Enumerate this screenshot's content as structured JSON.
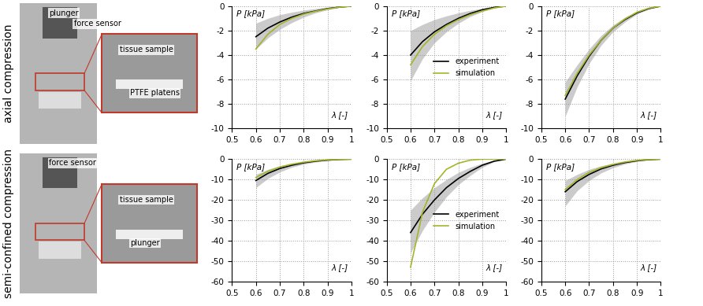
{
  "rows": [
    {
      "label": "axial compression",
      "photo_labels": [
        "plunger",
        "force sensor"
      ],
      "inset_labels": [
        "tissue sample",
        "PTFE platens"
      ]
    },
    {
      "label": "semi-confined compression",
      "photo_labels": [
        "force sensor"
      ],
      "inset_labels": [
        "tissue sample",
        "plunger"
      ]
    }
  ],
  "chart_data": [
    {
      "type": "line",
      "x_label": "λ [-]",
      "y_label": "P [kPa]",
      "xlim": [
        0.5,
        1
      ],
      "xticks": [
        0.5,
        0.6,
        0.7,
        0.8,
        0.9,
        1
      ],
      "ylim": [
        -10,
        0
      ],
      "yticks": [
        -10,
        -8,
        -6,
        -4,
        -2,
        0
      ],
      "grid": true,
      "x": [
        0.6,
        0.65,
        0.7,
        0.75,
        0.8,
        0.85,
        0.9,
        0.95,
        1.0
      ],
      "series": [
        {
          "color": "#000000",
          "values": [
            -2.5,
            -1.8,
            -1.3,
            -0.9,
            -0.6,
            -0.4,
            -0.2,
            -0.08,
            0
          ],
          "lower": [
            -3.5,
            -2.6,
            -1.9,
            -1.35,
            -0.9,
            -0.55,
            -0.3,
            -0.1,
            0
          ],
          "upper": [
            -1.4,
            -1.0,
            -0.7,
            -0.5,
            -0.33,
            -0.2,
            -0.1,
            -0.04,
            0
          ]
        },
        {
          "color": "#a5b52b",
          "values": [
            -3.5,
            -2.3,
            -1.5,
            -1.0,
            -0.65,
            -0.42,
            -0.23,
            -0.09,
            0
          ]
        }
      ]
    },
    {
      "type": "line",
      "x_label": "λ [-]",
      "y_label": "P [kPa]",
      "xlim": [
        0.5,
        1
      ],
      "xticks": [
        0.5,
        0.6,
        0.7,
        0.8,
        0.9,
        1
      ],
      "ylim": [
        -10,
        0
      ],
      "yticks": [
        -10,
        -8,
        -6,
        -4,
        -2,
        0
      ],
      "grid": true,
      "legend": "center right",
      "x": [
        0.6,
        0.65,
        0.7,
        0.75,
        0.8,
        0.85,
        0.9,
        0.95,
        1.0
      ],
      "series": [
        {
          "name": "experiment",
          "color": "#000000",
          "values": [
            -4.0,
            -2.9,
            -2.1,
            -1.5,
            -1.0,
            -0.6,
            -0.3,
            -0.1,
            0
          ],
          "lower": [
            -6.1,
            -4.3,
            -3.0,
            -2.1,
            -1.4,
            -0.85,
            -0.45,
            -0.15,
            0
          ],
          "upper": [
            -2.0,
            -1.5,
            -1.1,
            -0.8,
            -0.55,
            -0.35,
            -0.18,
            -0.06,
            0
          ]
        },
        {
          "name": "simulation",
          "color": "#a5b52b",
          "values": [
            -4.8,
            -3.3,
            -2.3,
            -1.6,
            -1.1,
            -0.7,
            -0.4,
            -0.15,
            0
          ]
        }
      ]
    },
    {
      "type": "line",
      "x_label": "λ [-]",
      "y_label": "P [kPa]",
      "xlim": [
        0.5,
        1
      ],
      "xticks": [
        0.5,
        0.6,
        0.7,
        0.8,
        0.9,
        1
      ],
      "ylim": [
        -10,
        0
      ],
      "yticks": [
        -10,
        -8,
        -6,
        -4,
        -2,
        0
      ],
      "grid": true,
      "x": [
        0.6,
        0.65,
        0.7,
        0.75,
        0.8,
        0.85,
        0.9,
        0.95,
        1.0
      ],
      "series": [
        {
          "color": "#000000",
          "values": [
            -7.6,
            -5.7,
            -4.1,
            -2.8,
            -1.8,
            -1.1,
            -0.55,
            -0.2,
            0
          ],
          "lower": [
            -9.0,
            -6.6,
            -4.7,
            -3.2,
            -2.1,
            -1.3,
            -0.65,
            -0.25,
            0
          ],
          "upper": [
            -6.2,
            -4.8,
            -3.5,
            -2.4,
            -1.55,
            -0.9,
            -0.45,
            -0.15,
            0
          ]
        },
        {
          "color": "#a5b52b",
          "values": [
            -7.3,
            -5.5,
            -4.0,
            -2.8,
            -1.8,
            -1.05,
            -0.5,
            -0.17,
            0
          ]
        }
      ]
    },
    {
      "type": "line",
      "x_label": "λ [-]",
      "y_label": "P [kPa]",
      "xlim": [
        0.5,
        1
      ],
      "xticks": [
        0.5,
        0.6,
        0.7,
        0.8,
        0.9,
        1
      ],
      "ylim": [
        -60,
        0
      ],
      "yticks": [
        -60,
        -50,
        -40,
        -30,
        -20,
        -10,
        0
      ],
      "grid": true,
      "x": [
        0.6,
        0.65,
        0.7,
        0.75,
        0.8,
        0.85,
        0.9,
        0.95,
        1.0
      ],
      "series": [
        {
          "color": "#000000",
          "values": [
            -10.5,
            -7,
            -4.6,
            -3.0,
            -1.8,
            -1.0,
            -0.5,
            -0.15,
            0
          ],
          "lower": [
            -14,
            -9.5,
            -6.3,
            -4.0,
            -2.5,
            -1.4,
            -0.7,
            -0.2,
            0
          ],
          "upper": [
            -7.5,
            -5,
            -3.3,
            -2.1,
            -1.3,
            -0.7,
            -0.35,
            -0.1,
            0
          ]
        },
        {
          "color": "#a5b52b",
          "values": [
            -9,
            -6,
            -3.9,
            -2.5,
            -1.5,
            -0.8,
            -0.35,
            -0.1,
            0
          ]
        }
      ]
    },
    {
      "type": "line",
      "x_label": "λ [-]",
      "y_label": "P [kPa]",
      "xlim": [
        0.5,
        1
      ],
      "xticks": [
        0.5,
        0.6,
        0.7,
        0.8,
        0.9,
        1
      ],
      "ylim": [
        -60,
        0
      ],
      "yticks": [
        -60,
        -50,
        -40,
        -30,
        -20,
        -10,
        0
      ],
      "grid": true,
      "legend": "center right",
      "x": [
        0.6,
        0.65,
        0.7,
        0.75,
        0.8,
        0.85,
        0.9,
        0.95,
        1.0
      ],
      "series": [
        {
          "name": "experiment",
          "color": "#000000",
          "values": [
            -36,
            -27,
            -20,
            -14,
            -9.5,
            -6,
            -3,
            -1,
            0
          ],
          "lower": [
            -46,
            -35,
            -26,
            -18.5,
            -12.5,
            -8,
            -4,
            -1.3,
            0
          ],
          "upper": [
            -25,
            -19,
            -14,
            -10,
            -6.5,
            -4,
            -2,
            -0.7,
            0
          ]
        },
        {
          "name": "simulation",
          "color": "#a5b52b",
          "values": [
            -53,
            -26,
            -12,
            -5,
            -2,
            -0.5,
            0,
            0,
            0
          ]
        }
      ]
    },
    {
      "type": "line",
      "x_label": "λ [-]",
      "y_label": "P [kPa]",
      "xlim": [
        0.5,
        1
      ],
      "xticks": [
        0.5,
        0.6,
        0.7,
        0.8,
        0.9,
        1
      ],
      "ylim": [
        -60,
        0
      ],
      "yticks": [
        -60,
        -50,
        -40,
        -30,
        -20,
        -10,
        0
      ],
      "grid": true,
      "x": [
        0.6,
        0.65,
        0.7,
        0.75,
        0.8,
        0.85,
        0.9,
        0.95,
        1.0
      ],
      "series": [
        {
          "color": "#000000",
          "values": [
            -16,
            -11,
            -7.5,
            -4.8,
            -3,
            -1.7,
            -0.8,
            -0.25,
            0
          ],
          "lower": [
            -23,
            -15.5,
            -10.5,
            -6.8,
            -4.2,
            -2.4,
            -1.1,
            -0.35,
            0
          ],
          "upper": [
            -10.5,
            -7.5,
            -5,
            -3.3,
            -2,
            -1.1,
            -0.5,
            -0.15,
            0
          ]
        },
        {
          "color": "#a5b52b",
          "values": [
            -15,
            -10,
            -6.5,
            -4.2,
            -2.6,
            -1.4,
            -0.6,
            -0.15,
            0
          ]
        }
      ]
    }
  ]
}
